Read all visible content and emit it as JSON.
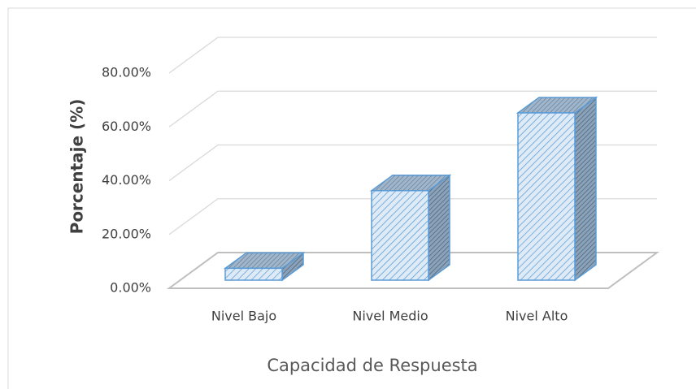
{
  "chart_data": {
    "type": "bar3d",
    "x_label": "Capacidad de Respuesta",
    "y_label": "Porcentaje (%)",
    "categories": [
      "Nivel Bajo",
      "Nivel Medio",
      "Nivel Alto"
    ],
    "values": [
      4.4,
      33.3,
      62.2
    ],
    "color": "#5b9bd5",
    "ylim": [
      0,
      80
    ],
    "yticks": [
      {
        "value": 0,
        "label": "0.00%"
      },
      {
        "value": 20,
        "label": "20.00%"
      },
      {
        "value": 40,
        "label": "40.00%"
      },
      {
        "value": 60,
        "label": "60.00%"
      },
      {
        "value": 80,
        "label": "80.00%"
      }
    ],
    "grid": true
  }
}
